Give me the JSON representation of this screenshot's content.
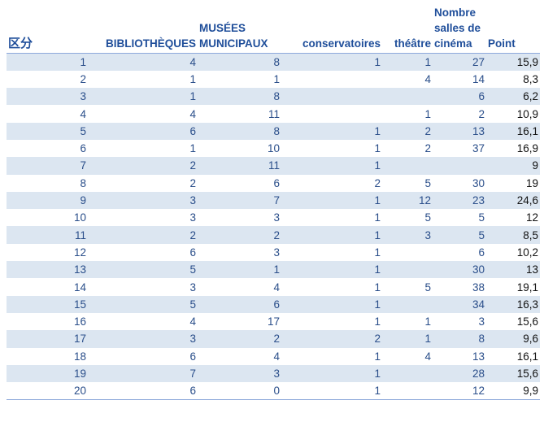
{
  "table": {
    "headers": [
      {
        "label": "区分",
        "align": "left"
      },
      {
        "label": "BIBLIOTHÈQUES",
        "align": "right"
      },
      {
        "label": "MUSÉES MUNICIPAUX",
        "align": "right"
      },
      {
        "label": "conservatoires",
        "align": "right"
      },
      {
        "label": "théâtre",
        "align": "right"
      },
      {
        "label": "Nombre salles de cinéma",
        "align": "left"
      },
      {
        "label": "Point",
        "align": "left"
      }
    ],
    "rows": [
      [
        "1",
        "4",
        "8",
        "1",
        "1",
        "27",
        "15,9"
      ],
      [
        "2",
        "1",
        "1",
        "",
        "4",
        "14",
        "8,3"
      ],
      [
        "3",
        "1",
        "8",
        "",
        "",
        "6",
        "6,2"
      ],
      [
        "4",
        "4",
        "11",
        "",
        "1",
        "2",
        "10,9"
      ],
      [
        "5",
        "6",
        "8",
        "1",
        "2",
        "13",
        "16,1"
      ],
      [
        "6",
        "1",
        "10",
        "1",
        "2",
        "37",
        "16,9"
      ],
      [
        "7",
        "2",
        "11",
        "1",
        "",
        "",
        "9"
      ],
      [
        "8",
        "2",
        "6",
        "2",
        "5",
        "30",
        "19"
      ],
      [
        "9",
        "3",
        "7",
        "1",
        "12",
        "23",
        "24,6"
      ],
      [
        "10",
        "3",
        "3",
        "1",
        "5",
        "5",
        "12"
      ],
      [
        "11",
        "2",
        "2",
        "1",
        "3",
        "5",
        "8,5"
      ],
      [
        "12",
        "6",
        "3",
        "1",
        "",
        "6",
        "10,2"
      ],
      [
        "13",
        "5",
        "1",
        "1",
        "",
        "30",
        "13"
      ],
      [
        "14",
        "3",
        "4",
        "1",
        "5",
        "38",
        "19,1"
      ],
      [
        "15",
        "5",
        "6",
        "1",
        "",
        "34",
        "16,3"
      ],
      [
        "16",
        "4",
        "17",
        "1",
        "1",
        "3",
        "15,6"
      ],
      [
        "17",
        "3",
        "2",
        "2",
        "1",
        "8",
        "9,6"
      ],
      [
        "18",
        "6",
        "4",
        "1",
        "4",
        "13",
        "16,1"
      ],
      [
        "19",
        "7",
        "3",
        "1",
        "",
        "28",
        "15,6"
      ],
      [
        "20",
        "6",
        "0",
        "1",
        "",
        "12",
        "9,9"
      ]
    ]
  },
  "colors": {
    "header_text": "#1f4e9a",
    "cell_text": "#2a4e8a",
    "band": "#dce6f1",
    "rule": "#8ea9db"
  }
}
